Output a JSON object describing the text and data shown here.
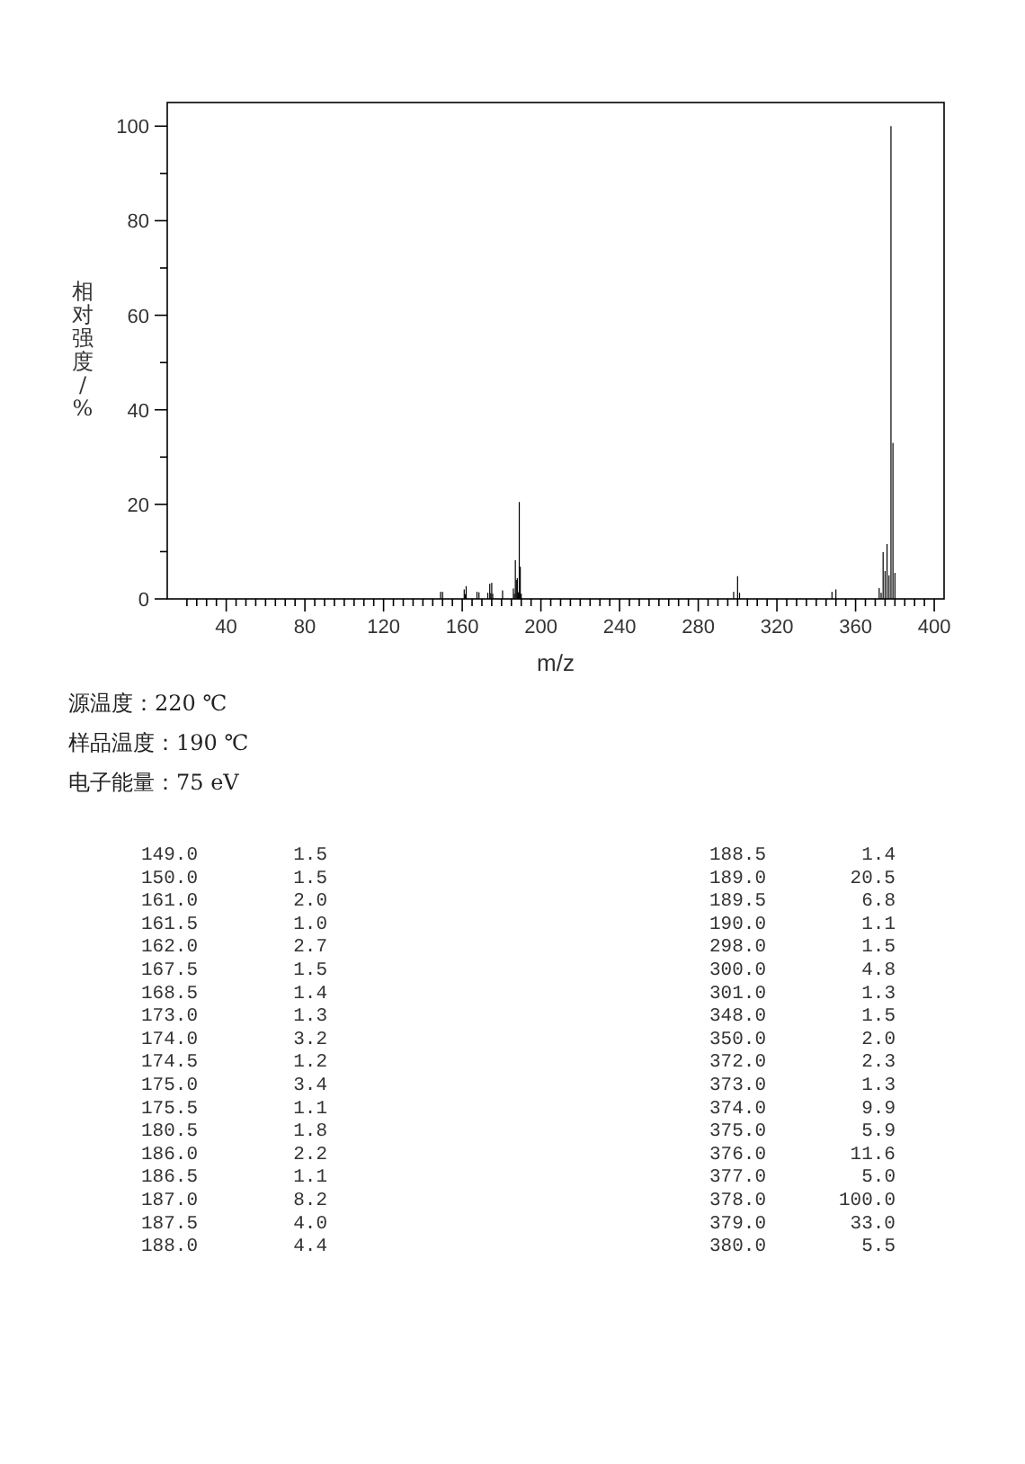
{
  "chart_data": [
    {
      "type": "bar",
      "xlabel": "m/z",
      "ylabel": "相对强度/%",
      "color": "#000000",
      "x": [
        149,
        150,
        161,
        161.5,
        162,
        167.5,
        168.5,
        173,
        174,
        174.5,
        175,
        175.5,
        180.5,
        186,
        186.5,
        187,
        187.5,
        188,
        188.5,
        189,
        189.5,
        190,
        298,
        300,
        301,
        348,
        350,
        372,
        373,
        374,
        375,
        376,
        377,
        378,
        379,
        380
      ],
      "values": [
        1.5,
        1.5,
        2.0,
        1.0,
        2.7,
        1.5,
        1.4,
        1.3,
        3.2,
        1.2,
        3.4,
        1.1,
        1.8,
        2.2,
        1.1,
        8.2,
        4.0,
        4.4,
        1.4,
        20.5,
        6.8,
        1.1,
        1.5,
        4.8,
        1.3,
        1.5,
        2.0,
        2.3,
        1.3,
        9.9,
        5.9,
        11.6,
        5.0,
        100.0,
        33.0,
        5.5
      ],
      "xlim": [
        10,
        405
      ],
      "xticks": [
        {
          "value": 20,
          "label": null
        },
        {
          "value": 25,
          "label": null
        },
        {
          "value": 30,
          "label": null
        },
        {
          "value": 35,
          "label": null
        },
        40,
        {
          "value": 45,
          "label": null
        },
        {
          "value": 50,
          "label": null
        },
        {
          "value": 55,
          "label": null
        },
        {
          "value": 60,
          "label": null
        },
        {
          "value": 65,
          "label": null
        },
        {
          "value": 70,
          "label": null
        },
        {
          "value": 75,
          "label": null
        },
        80,
        {
          "value": 85,
          "label": null
        },
        {
          "value": 90,
          "label": null
        },
        {
          "value": 95,
          "label": null
        },
        {
          "value": 100,
          "label": null
        },
        {
          "value": 105,
          "label": null
        },
        {
          "value": 110,
          "label": null
        },
        {
          "value": 115,
          "label": null
        },
        120,
        {
          "value": 125,
          "label": null
        },
        {
          "value": 130,
          "label": null
        },
        {
          "value": 135,
          "label": null
        },
        {
          "value": 140,
          "label": null
        },
        {
          "value": 145,
          "label": null
        },
        {
          "value": 150,
          "label": null
        },
        {
          "value": 155,
          "label": null
        },
        160,
        {
          "value": 165,
          "label": null
        },
        {
          "value": 170,
          "label": null
        },
        {
          "value": 175,
          "label": null
        },
        {
          "value": 180,
          "label": null
        },
        {
          "value": 185,
          "label": null
        },
        {
          "value": 190,
          "label": null
        },
        {
          "value": 195,
          "label": null
        },
        200,
        {
          "value": 205,
          "label": null
        },
        {
          "value": 210,
          "label": null
        },
        {
          "value": 215,
          "label": null
        },
        {
          "value": 220,
          "label": null
        },
        {
          "value": 225,
          "label": null
        },
        {
          "value": 230,
          "label": null
        },
        {
          "value": 235,
          "label": null
        },
        240,
        {
          "value": 245,
          "label": null
        },
        {
          "value": 250,
          "label": null
        },
        {
          "value": 255,
          "label": null
        },
        {
          "value": 260,
          "label": null
        },
        {
          "value": 265,
          "label": null
        },
        {
          "value": 270,
          "label": null
        },
        {
          "value": 275,
          "label": null
        },
        280,
        {
          "value": 285,
          "label": null
        },
        {
          "value": 290,
          "label": null
        },
        {
          "value": 295,
          "label": null
        },
        {
          "value": 300,
          "label": null
        },
        {
          "value": 305,
          "label": null
        },
        {
          "value": 310,
          "label": null
        },
        {
          "value": 315,
          "label": null
        },
        320,
        {
          "value": 325,
          "label": null
        },
        {
          "value": 330,
          "label": null
        },
        {
          "value": 335,
          "label": null
        },
        {
          "value": 340,
          "label": null
        },
        {
          "value": 345,
          "label": null
        },
        {
          "value": 350,
          "label": null
        },
        {
          "value": 355,
          "label": null
        },
        360,
        {
          "value": 365,
          "label": null
        },
        {
          "value": 370,
          "label": null
        },
        {
          "value": 375,
          "label": null
        },
        {
          "value": 380,
          "label": null
        },
        {
          "value": 385,
          "label": null
        },
        {
          "value": 390,
          "label": null
        },
        {
          "value": 395,
          "label": null
        },
        400
      ],
      "ylim": [
        0,
        105
      ],
      "yticks": [
        0,
        {
          "value": 10,
          "label": null
        },
        20,
        {
          "value": 30,
          "label": null
        },
        40,
        {
          "value": 50,
          "label": null
        },
        60,
        {
          "value": 70,
          "label": null
        },
        80,
        {
          "value": 90,
          "label": null
        },
        100
      ],
      "annotations": [
        "源温度：220 ℃",
        "样品温度：190 ℃",
        "电子能量：75 eV"
      ]
    },
    {
      "type": "other",
      "annotations": [
        "149.0",
        "1.5",
        "150.0",
        "1.5",
        "161.0",
        "2.0",
        "161.5",
        "1.0",
        "162.0",
        "2.7",
        "167.5",
        "1.5",
        "168.5",
        "1.4",
        "173.0",
        "1.3",
        "174.0",
        "3.2",
        "174.5",
        "1.2",
        "175.0",
        "3.4",
        "175.5",
        "1.1",
        "180.5",
        "1.8",
        "186.0",
        "2.2",
        "186.5",
        "1.1",
        "187.0",
        "8.2",
        "187.5",
        "4.0",
        "188.0",
        "4.4",
        "188.5",
        "1.4",
        "189.0",
        "20.5",
        "189.5",
        "6.8",
        "190.0",
        "1.1",
        "298.0",
        "1.5",
        "300.0",
        "4.8",
        "301.0",
        "1.3",
        "348.0",
        "1.5",
        "350.0",
        "2.0",
        "372.0",
        "2.3",
        "373.0",
        "1.3",
        "374.0",
        "9.9",
        "375.0",
        "5.9",
        "376.0",
        "11.6",
        "377.0",
        "5.0",
        "378.0",
        "100.0",
        "379.0",
        "33.0",
        "380.0",
        "5.5"
      ]
    }
  ]
}
